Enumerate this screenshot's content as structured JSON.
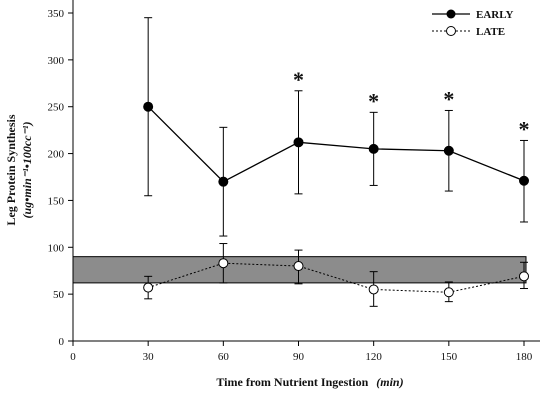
{
  "chart_data": {
    "type": "line",
    "xlabel": "Time from Nutrient Ingestion",
    "xlabel_unit": "(min)",
    "ylabel": "Leg Protein Synthesis",
    "ylabel_unit": "(ug•min⁻¹•100cc⁻¹)",
    "xlim": [
      0,
      180
    ],
    "ylim": [
      0,
      350
    ],
    "x_ticks": [
      0,
      30,
      60,
      90,
      120,
      150,
      180
    ],
    "y_ticks": [
      0,
      50,
      100,
      150,
      200,
      250,
      300,
      350
    ],
    "x": [
      30,
      60,
      90,
      120,
      150,
      180
    ],
    "series": [
      {
        "name": "EARLY",
        "values": [
          250,
          170,
          212,
          205,
          203,
          171
        ],
        "error_low": [
          155,
          112,
          157,
          166,
          160,
          127
        ],
        "error_high": [
          345,
          228,
          267,
          244,
          246,
          214
        ],
        "marker": "filled-circle",
        "line_style": "solid"
      },
      {
        "name": "LATE",
        "values": [
          57,
          83,
          80,
          55,
          52,
          69
        ],
        "error_low": [
          45,
          62,
          61,
          37,
          42,
          56
        ],
        "error_high": [
          69,
          104,
          97,
          74,
          63,
          84
        ],
        "marker": "open-circle",
        "line_style": "dotted"
      }
    ],
    "band": {
      "y_low": 62,
      "y_high": 90,
      "color": "#8c8c8c"
    },
    "significance": {
      "marker": "*",
      "x": [
        90,
        120,
        150,
        180
      ]
    },
    "grid": false,
    "legend": "top-right"
  }
}
